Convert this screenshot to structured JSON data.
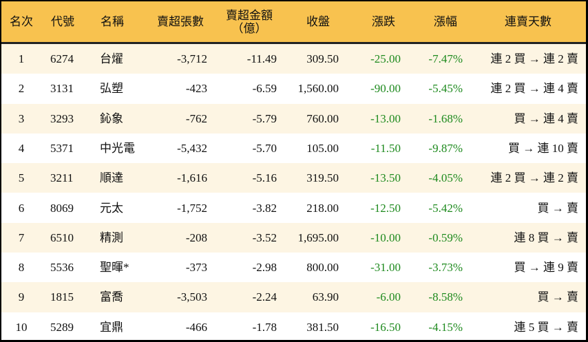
{
  "colors": {
    "header_bg": "#F8C24F",
    "row_alt_bg": "#FDF5E3",
    "negative": "#1E8A1E"
  },
  "headers": {
    "rank": "名次",
    "code": "代號",
    "name": "名稱",
    "sell_lots": "賣超張數",
    "sell_amount": "賣超金額",
    "sell_amount_unit": "（億）",
    "close": "收盤",
    "change": "漲跌",
    "change_pct": "漲幅",
    "streak": "連賣天數"
  },
  "rows": [
    {
      "rank": "1",
      "code": "6274",
      "name": "台燿",
      "sell_lots": "-3,712",
      "sell_amount": "-11.49",
      "close": "309.50",
      "change": "-25.00",
      "change_pct": "-7.47%",
      "streak": "連 2 買 → 連 2 賣"
    },
    {
      "rank": "2",
      "code": "3131",
      "name": "弘塑",
      "sell_lots": "-423",
      "sell_amount": "-6.59",
      "close": "1,560.00",
      "change": "-90.00",
      "change_pct": "-5.45%",
      "streak": "連 2 買 → 連 4 賣"
    },
    {
      "rank": "3",
      "code": "3293",
      "name": "鈊象",
      "sell_lots": "-762",
      "sell_amount": "-5.79",
      "close": "760.00",
      "change": "-13.00",
      "change_pct": "-1.68%",
      "streak": "買 → 連 4 賣"
    },
    {
      "rank": "4",
      "code": "5371",
      "name": "中光電",
      "sell_lots": "-5,432",
      "sell_amount": "-5.70",
      "close": "105.00",
      "change": "-11.50",
      "change_pct": "-9.87%",
      "streak": "買 → 連 10 賣"
    },
    {
      "rank": "5",
      "code": "3211",
      "name": "順達",
      "sell_lots": "-1,616",
      "sell_amount": "-5.16",
      "close": "319.50",
      "change": "-13.50",
      "change_pct": "-4.05%",
      "streak": "連 2 買 → 連 2 賣"
    },
    {
      "rank": "6",
      "code": "8069",
      "name": "元太",
      "sell_lots": "-1,752",
      "sell_amount": "-3.82",
      "close": "218.00",
      "change": "-12.50",
      "change_pct": "-5.42%",
      "streak": "買 → 賣"
    },
    {
      "rank": "7",
      "code": "6510",
      "name": "精測",
      "sell_lots": "-208",
      "sell_amount": "-3.52",
      "close": "1,695.00",
      "change": "-10.00",
      "change_pct": "-0.59%",
      "streak": "連 8 買 → 賣"
    },
    {
      "rank": "8",
      "code": "5536",
      "name": "聖暉*",
      "sell_lots": "-373",
      "sell_amount": "-2.98",
      "close": "800.00",
      "change": "-31.00",
      "change_pct": "-3.73%",
      "streak": "買 → 連 9 賣"
    },
    {
      "rank": "9",
      "code": "1815",
      "name": "富喬",
      "sell_lots": "-3,503",
      "sell_amount": "-2.24",
      "close": "63.90",
      "change": "-6.00",
      "change_pct": "-8.58%",
      "streak": "買 → 賣"
    },
    {
      "rank": "10",
      "code": "5289",
      "name": "宜鼎",
      "sell_lots": "-466",
      "sell_amount": "-1.78",
      "close": "381.50",
      "change": "-16.50",
      "change_pct": "-4.15%",
      "streak": "連 5 買 → 賣"
    }
  ]
}
